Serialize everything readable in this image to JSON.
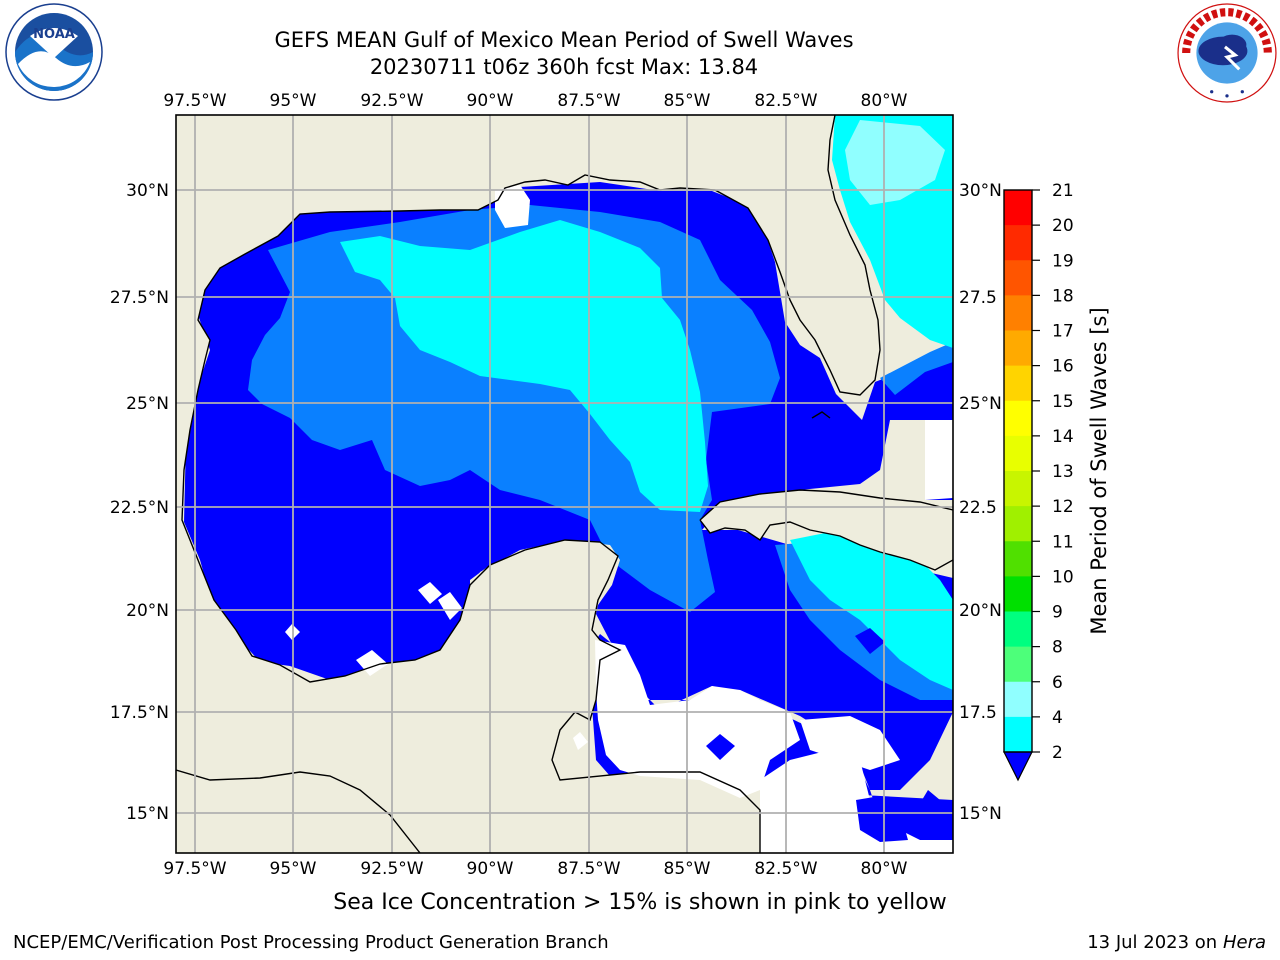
{
  "title": {
    "line1": "GEFS MEAN Gulf of Mexico Mean Period of Swell Waves",
    "line2": "20230711 t06z 360h fcst   Max: 13.84"
  },
  "logos": {
    "noaa": {
      "text": "NOAA",
      "ring_text": "NATIONAL OCEANIC AND ATMOSPHERIC ADMINISTRATION · U.S. DEPARTMENT OF COMMERCE"
    },
    "nws": {
      "ring_text": "NATIONAL WEATHER SERVICE"
    }
  },
  "map": {
    "lon_ticks": [
      "97.5°W",
      "95°W",
      "92.5°W",
      "90°W",
      "87.5°W",
      "85°W",
      "82.5°W",
      "80°W"
    ],
    "lat_ticks_left": [
      "30°N",
      "27.5°N",
      "25°N",
      "22.5°N",
      "20°N",
      "17.5°N",
      "15°N"
    ],
    "lat_ticks_right": [
      "30°N",
      "27.5",
      "25°N",
      "22.5",
      "20°N",
      "17.5",
      "15°N"
    ],
    "lon_range": [
      -98,
      -78.3
    ],
    "lat_range": [
      14,
      31.8
    ],
    "land_color": "#eeeddd",
    "grid_color": "#b0b0b0"
  },
  "colorbar": {
    "label": "Mean Period of Swell Waves [s]",
    "ticks": [
      "21",
      "20",
      "19",
      "18",
      "17",
      "16",
      "15",
      "14",
      "13",
      "12",
      "11",
      "10",
      "9",
      "8",
      "6",
      "4",
      "2"
    ],
    "bins": [
      {
        "from": 20,
        "to": 21,
        "color": "#ff0000"
      },
      {
        "from": 19,
        "to": 20,
        "color": "#ff2a00"
      },
      {
        "from": 18,
        "to": 19,
        "color": "#ff5500"
      },
      {
        "from": 17,
        "to": 18,
        "color": "#ff8000"
      },
      {
        "from": 16,
        "to": 17,
        "color": "#ffaa00"
      },
      {
        "from": 15,
        "to": 16,
        "color": "#ffd400"
      },
      {
        "from": 14,
        "to": 15,
        "color": "#ffff00"
      },
      {
        "from": 13,
        "to": 14,
        "color": "#e8ff00"
      },
      {
        "from": 12,
        "to": 13,
        "color": "#c8f500"
      },
      {
        "from": 11,
        "to": 12,
        "color": "#a0f000"
      },
      {
        "from": 10,
        "to": 11,
        "color": "#50e000"
      },
      {
        "from": 9,
        "to": 10,
        "color": "#00e000"
      },
      {
        "from": 8,
        "to": 9,
        "color": "#00ff80"
      },
      {
        "from": 6,
        "to": 8,
        "color": "#4dff7a"
      },
      {
        "from": 4,
        "to": 6,
        "color": "#90ffff"
      },
      {
        "from": 2,
        "to": 4,
        "color": "#00ffff"
      }
    ],
    "level_colors": {
      "lt2": "#0000ff",
      "2to4": "#0a80ff",
      "4to6": "#00ffff",
      "6to8": "#4dffff",
      "8to9": "#99ffff",
      "12to13": "#c8f500",
      "13to14": "#e0ff00",
      "10to11": "#50e800"
    }
  },
  "notes": {
    "sea_ice": "Sea Ice Concentration > 15% is shown in pink to yellow",
    "footer_left": "NCEP/EMC/Verification Post Processing Product Generation Branch",
    "footer_date": "13 Jul 2023 on ",
    "footer_host": "Hera"
  }
}
